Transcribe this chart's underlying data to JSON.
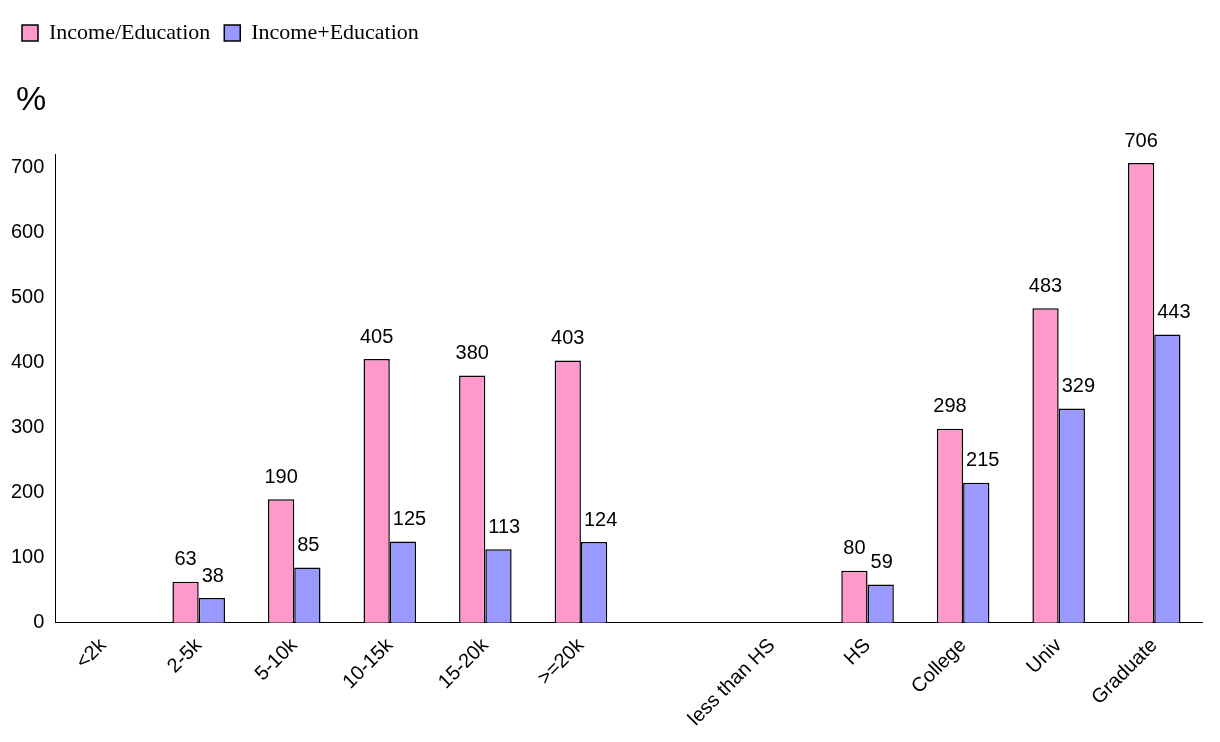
{
  "chart_data": {
    "type": "bar",
    "ylabel": "%",
    "categories": [
      "<2k",
      "2-5k",
      "5-10k",
      "10-15k",
      "15-20k",
      ">=20k",
      null,
      "less than HS",
      "HS",
      "College",
      "Univ",
      "Graduate"
    ],
    "series": [
      {
        "name": "Income/Education",
        "color": "#ff99cc",
        "values": [
          null,
          63,
          190,
          405,
          380,
          403,
          null,
          null,
          80,
          298,
          483,
          706
        ]
      },
      {
        "name": "Income+Education",
        "color": "#9999ff",
        "values": [
          null,
          38,
          85,
          125,
          113,
          124,
          null,
          null,
          59,
          215,
          329,
          443
        ]
      }
    ],
    "ylim": [
      0,
      720
    ],
    "yticks": [
      0,
      100,
      200,
      300,
      400,
      500,
      600,
      700
    ],
    "grid": false,
    "legend": "top",
    "data_labels": true
  }
}
